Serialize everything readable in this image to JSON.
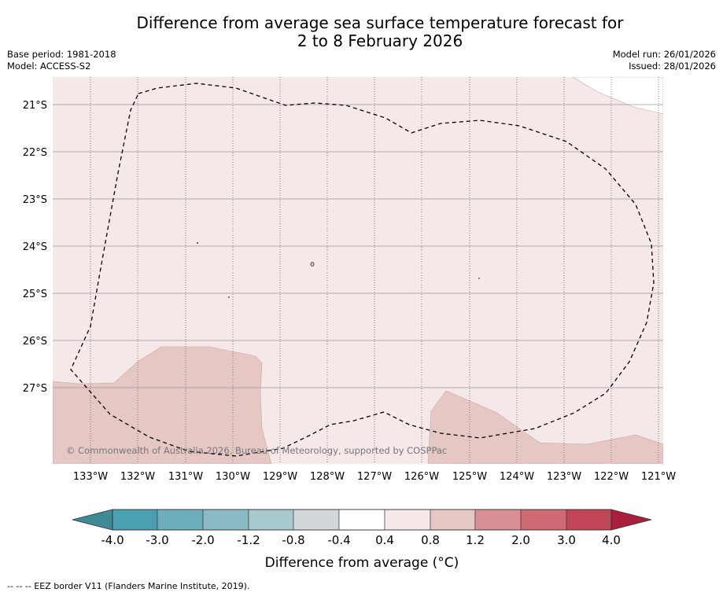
{
  "title": {
    "line1": "Difference from average sea surface temperature forecast for",
    "line2": "2 to 8 February 2026"
  },
  "meta": {
    "base_period": "Base period: 1981-2018",
    "model": "Model: ACCESS-S2",
    "model_run": "Model run: 26/01/2026",
    "issued": "Issued: 28/01/2026"
  },
  "map": {
    "lat_labels": [
      "21°S",
      "22°S",
      "23°S",
      "24°S",
      "25°S",
      "26°S",
      "27°S"
    ],
    "lon_labels": [
      "133°W",
      "132°W",
      "131°W",
      "130°W",
      "129°W",
      "128°W",
      "127°W",
      "126°W",
      "125°W",
      "124°W",
      "123°W",
      "122°W",
      "121°W"
    ],
    "copyright": "© Commonwealth of Australia 2026, Bureau of Meteorology, supported by COSPPac",
    "colors": {
      "land": "#ffffff",
      "anomaly_04_08": "#f4e8e8",
      "anomaly_08_12": "#e5c7c4",
      "boundary": "#000000"
    }
  },
  "legend": {
    "tick_labels": [
      "-4.0",
      "-3.0",
      "-2.0",
      "-1.2",
      "-0.8",
      "-0.4",
      "0.4",
      "0.8",
      "1.2",
      "2.0",
      "3.0",
      "4.0"
    ],
    "colors": [
      "#4a9fb0",
      "#6eadbb",
      "#8cbac4",
      "#a8c9ce",
      "#d3d7da",
      "#ffffff",
      "#f4e8e8",
      "#e5c7c4",
      "#d88f95",
      "#cd6a74",
      "#bf4557"
    ],
    "under_color": "#3f8a96",
    "over_color": "#a81e3c",
    "label": "Difference from average (°C)"
  },
  "footer": "--  --  -- EEZ border V11 (Flanders Marine Institute, 2019)."
}
